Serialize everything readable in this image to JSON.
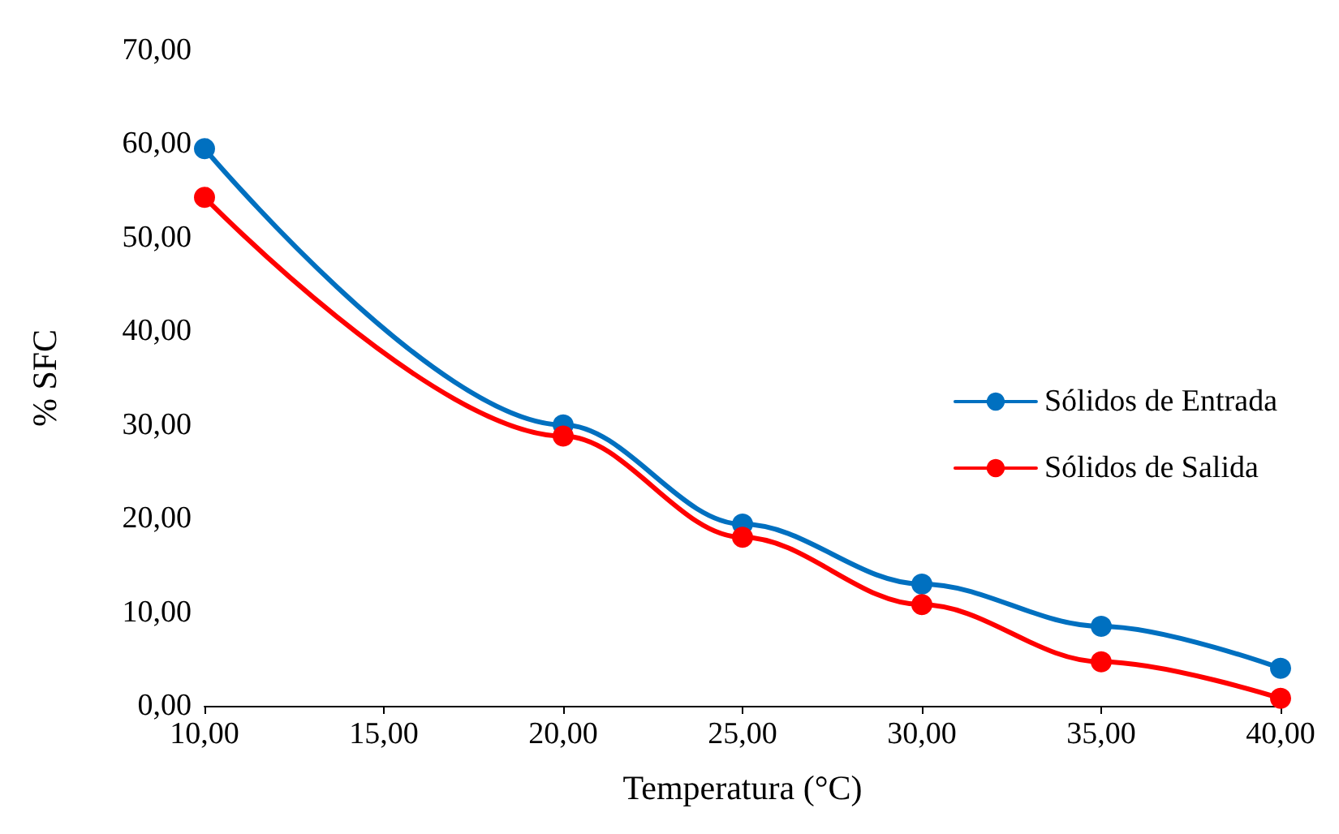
{
  "chart_data": {
    "type": "line",
    "xlabel": "Temperatura (°C)",
    "ylabel": "% SFC",
    "x": [
      10,
      20,
      25,
      30,
      35,
      40
    ],
    "series": [
      {
        "name": "Sólidos de Entrada",
        "color": "#0070c0",
        "values": [
          59.5,
          30,
          19.4,
          13,
          8.5,
          4
        ]
      },
      {
        "name": "Sólidos de Salida",
        "color": "#ff0000",
        "values": [
          54.3,
          28.8,
          18,
          10.8,
          4.7,
          0.8
        ]
      }
    ],
    "xlim": [
      10,
      40
    ],
    "xticks": [
      {
        "value": 10,
        "label": "10,00"
      },
      {
        "value": 15,
        "label": "15,00"
      },
      {
        "value": 20,
        "label": "20,00"
      },
      {
        "value": 25,
        "label": "25,00"
      },
      {
        "value": 30,
        "label": "30,00"
      },
      {
        "value": 35,
        "label": "35,00"
      },
      {
        "value": 40,
        "label": "40,00"
      }
    ],
    "ylim": [
      0,
      70
    ],
    "yticks": [
      {
        "value": 0,
        "label": "0,00"
      },
      {
        "value": 10,
        "label": "10,00"
      },
      {
        "value": 20,
        "label": "20,00"
      },
      {
        "value": 30,
        "label": "30,00"
      },
      {
        "value": 40,
        "label": "40,00"
      },
      {
        "value": 50,
        "label": "50,00"
      },
      {
        "value": 60,
        "label": "60,00"
      },
      {
        "value": 70,
        "label": "70,00"
      }
    ],
    "grid": false,
    "legend": "right",
    "marker": "circle",
    "line_style": "solid"
  }
}
